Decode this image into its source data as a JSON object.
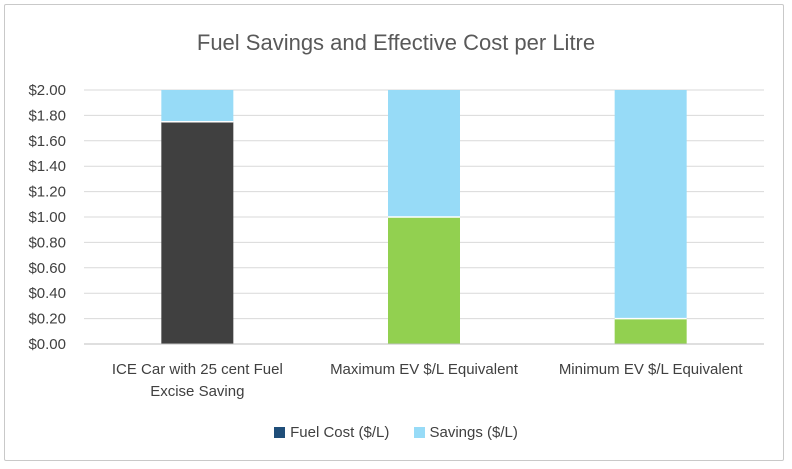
{
  "chart_data": {
    "type": "bar",
    "stacked": true,
    "title": "Fuel Savings and Effective Cost per Litre",
    "categories": [
      [
        "ICE Car with 25 cent Fuel",
        "Excise Saving"
      ],
      [
        "Maximum EV $/L Equivalent"
      ],
      [
        "Minimum EV $/L Equivalent"
      ]
    ],
    "series": [
      {
        "name": "Fuel Cost ($/L)",
        "values": [
          1.75,
          1.0,
          0.2
        ],
        "bar_colors": [
          "#404040",
          "#92d050",
          "#92d050"
        ],
        "legend_color": "#1f4e79"
      },
      {
        "name": "Savings ($/L)",
        "values": [
          0.25,
          1.0,
          1.8
        ],
        "bar_colors": [
          "#97dbf7",
          "#97dbf7",
          "#97dbf7"
        ],
        "legend_color": "#97dbf7"
      }
    ],
    "ylim": [
      0,
      2.0
    ],
    "y_ticks": [
      "$0.00",
      "$0.20",
      "$0.40",
      "$0.60",
      "$0.80",
      "$1.00",
      "$1.20",
      "$1.40",
      "$1.60",
      "$1.80",
      "$2.00"
    ],
    "y_tick_values": [
      0,
      0.2,
      0.4,
      0.6,
      0.8,
      1.0,
      1.2,
      1.4,
      1.6,
      1.8,
      2.0
    ],
    "grid": true,
    "legend_position": "bottom"
  }
}
